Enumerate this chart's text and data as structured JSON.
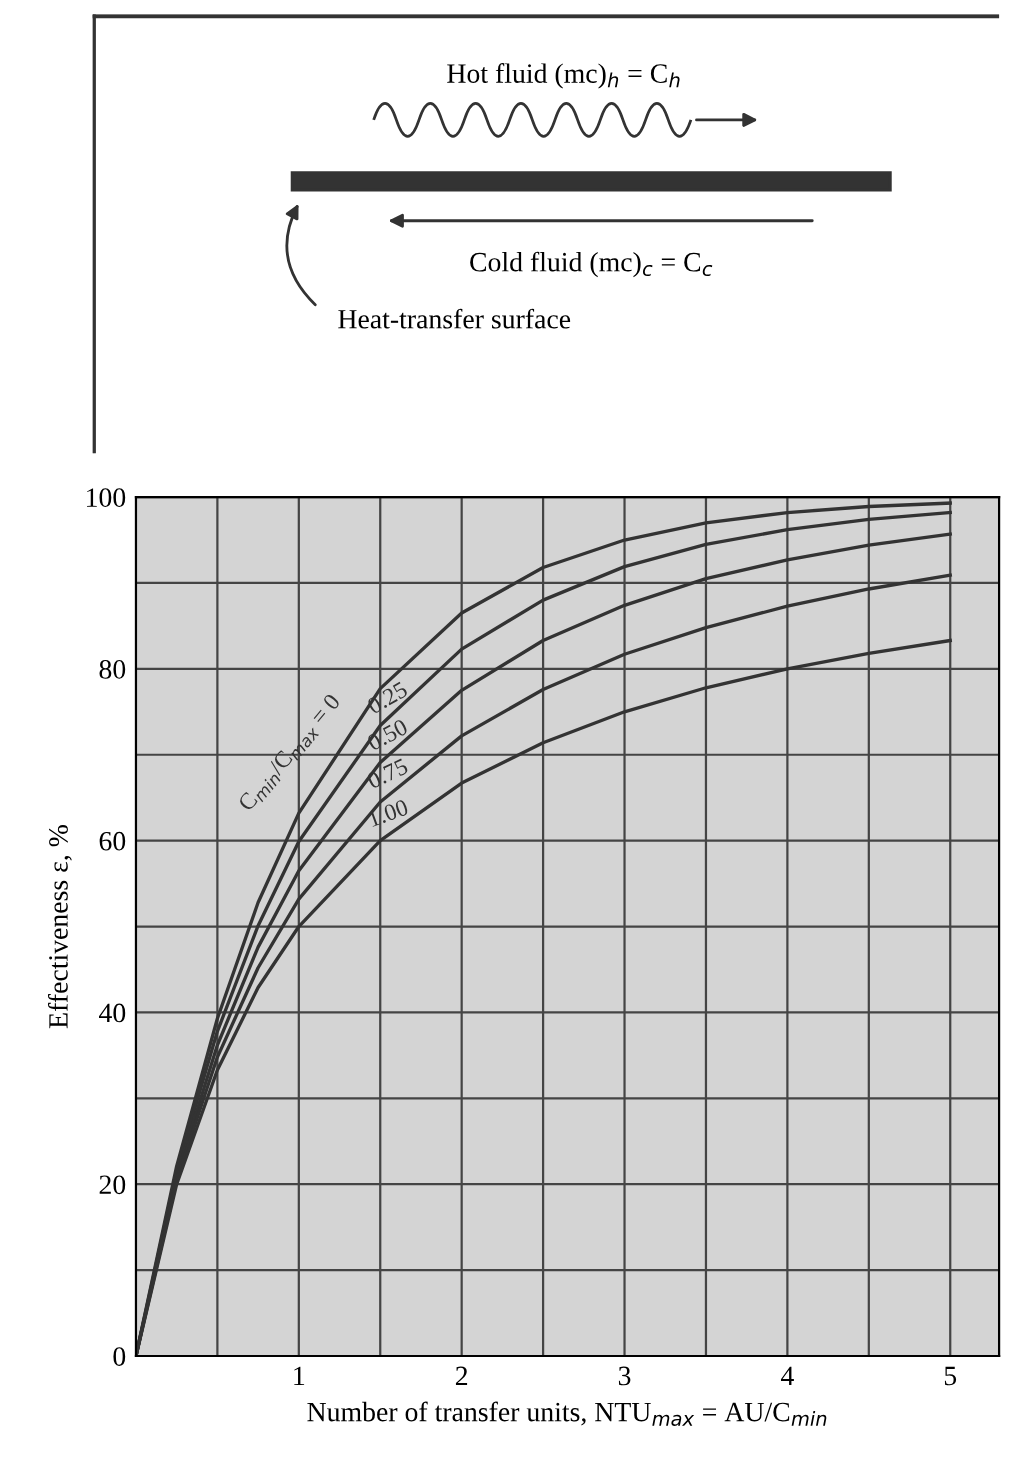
{
  "chart_data": {
    "type": "line",
    "xlabel": "Number of transfer units, NTU$_{max}$ = AU/C$_{min}$",
    "ylabel": "Effectiveness ε, %",
    "x": [
      0,
      0.25,
      0.5,
      0.75,
      1,
      1.5,
      2,
      2.5,
      3,
      3.5,
      4,
      4.5,
      5
    ],
    "series": [
      {
        "name": "C$_{min}$/C$_{max}$ = 0",
        "color": "#333333",
        "values": [
          0,
          22.1,
          39.3,
          52.8,
          63.2,
          77.7,
          86.5,
          91.8,
          95.0,
          97.0,
          98.2,
          98.9,
          99.3
        ]
      },
      {
        "name": "0.25",
        "color": "#333333",
        "values": [
          0,
          21.6,
          37.8,
          50.1,
          59.9,
          73.4,
          82.3,
          88.0,
          91.9,
          94.5,
          96.2,
          97.4,
          98.2
        ]
      },
      {
        "name": "0.50",
        "color": "#333333",
        "values": [
          0,
          21.0,
          36.2,
          47.6,
          56.5,
          69.1,
          77.5,
          83.3,
          87.4,
          90.5,
          92.7,
          94.4,
          95.7
        ]
      },
      {
        "name": "0.75",
        "color": "#333333",
        "values": [
          0,
          20.5,
          34.8,
          45.2,
          53.2,
          64.5,
          72.2,
          77.6,
          81.7,
          84.8,
          87.3,
          89.3,
          90.9
        ]
      },
      {
        "name": "1.00",
        "color": "#333333",
        "values": [
          0,
          20.0,
          33.3,
          42.9,
          50.0,
          60.0,
          66.7,
          71.4,
          75.0,
          77.8,
          80.0,
          81.8,
          83.3
        ]
      }
    ],
    "xlim": [
      0,
      5.3
    ],
    "ylim": [
      0,
      100
    ],
    "xticks": [
      {
        "value": 0.5,
        "label": null
      },
      1,
      {
        "value": 1.5,
        "label": null
      },
      2,
      {
        "value": 2.5,
        "label": null
      },
      3,
      {
        "value": 3.5,
        "label": null
      },
      4,
      {
        "value": 4.5,
        "label": null
      },
      5
    ],
    "yticks": [
      0,
      {
        "value": 10,
        "label": null
      },
      20,
      {
        "value": 30,
        "label": null
      },
      40,
      {
        "value": 50,
        "label": null
      },
      60,
      {
        "value": 70,
        "label": null
      },
      80,
      {
        "value": 90,
        "label": null
      },
      100
    ],
    "grid": true,
    "legend": false,
    "marker": "none",
    "line_style": "solid",
    "annotations": [
      "Hot fluid (mc)$_{h}$ = C$_{h}$",
      "Cold fluid (mc)$_{c}$ = C$_{c}$",
      "Heat-transfer surface"
    ]
  }
}
